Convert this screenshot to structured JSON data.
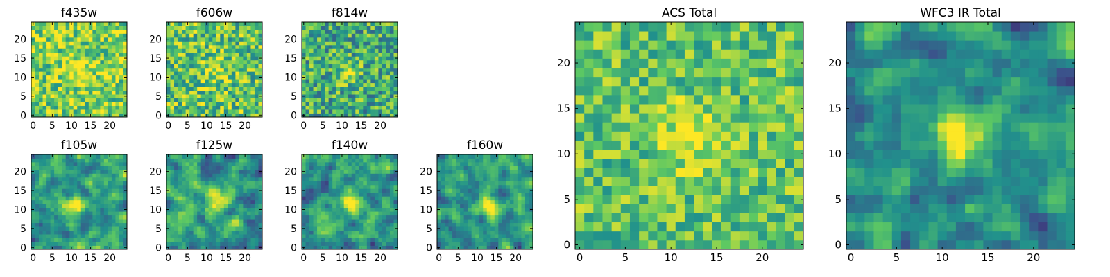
{
  "chart_data": [
    {
      "type": "heatmap",
      "title": "f435w",
      "size": 25,
      "center": [
        12,
        12
      ],
      "peak": 0.25,
      "sigma": 2.5,
      "smooth": 0,
      "noise": 0.55,
      "base": 0.78,
      "seed": 11,
      "xticks": [
        "0",
        "5",
        "10",
        "15",
        "20"
      ],
      "yticks": [
        "0",
        "5",
        "10",
        "15",
        "20"
      ],
      "xlim": [
        -0.5,
        24.5
      ],
      "ylim": [
        -0.5,
        24.5
      ]
    },
    {
      "type": "heatmap",
      "title": "f606w",
      "size": 25,
      "center": [
        12,
        12
      ],
      "peak": 0.2,
      "sigma": 2.5,
      "smooth": 0,
      "noise": 0.6,
      "base": 0.72,
      "seed": 23,
      "xticks": [
        "0",
        "5",
        "10",
        "15",
        "20"
      ],
      "yticks": [
        "0",
        "5",
        "10",
        "15",
        "20"
      ],
      "xlim": [
        -0.5,
        24.5
      ],
      "ylim": [
        -0.5,
        24.5
      ]
    },
    {
      "type": "heatmap",
      "title": "f814w",
      "size": 25,
      "center": [
        12,
        11
      ],
      "peak": 0.35,
      "sigma": 1.8,
      "smooth": 0,
      "noise": 0.6,
      "base": 0.62,
      "seed": 37,
      "xticks": [
        "0",
        "5",
        "10",
        "15",
        "20"
      ],
      "yticks": [
        "0",
        "5",
        "10",
        "15",
        "20"
      ],
      "xlim": [
        -0.5,
        24.5
      ],
      "ylim": [
        -0.5,
        24.5
      ]
    },
    {
      "type": "heatmap",
      "title": "f105w",
      "size": 25,
      "center": [
        11,
        11
      ],
      "peak": 0.45,
      "sigma": 2.0,
      "smooth": 1,
      "noise": 0.55,
      "base": 0.55,
      "seed": 41,
      "xticks": [
        "0",
        "5",
        "10",
        "15",
        "20"
      ],
      "yticks": [
        "0",
        "5",
        "10",
        "15",
        "20"
      ],
      "xlim": [
        -0.5,
        24.5
      ],
      "ylim": [
        -0.5,
        24.5
      ]
    },
    {
      "type": "heatmap",
      "title": "f125w",
      "size": 25,
      "center": [
        13,
        12
      ],
      "peak": 0.45,
      "sigma": 2.0,
      "smooth": 1,
      "noise": 0.55,
      "base": 0.55,
      "seed": 53,
      "xticks": [
        "0",
        "5",
        "10",
        "15",
        "20"
      ],
      "yticks": [
        "0",
        "5",
        "10",
        "15",
        "20"
      ],
      "xlim": [
        -0.5,
        24.5
      ],
      "ylim": [
        -0.5,
        24.5
      ]
    },
    {
      "type": "heatmap",
      "title": "f140w",
      "size": 25,
      "center": [
        12,
        12
      ],
      "peak": 0.45,
      "sigma": 2.0,
      "smooth": 1,
      "noise": 0.55,
      "base": 0.55,
      "seed": 67,
      "xticks": [
        "0",
        "5",
        "10",
        "15",
        "20"
      ],
      "yticks": [
        "0",
        "5",
        "10",
        "15",
        "20"
      ],
      "xlim": [
        -0.5,
        24.5
      ],
      "ylim": [
        -0.5,
        24.5
      ]
    },
    {
      "type": "heatmap",
      "title": "f160w",
      "size": 25,
      "center": [
        13,
        11
      ],
      "peak": 0.55,
      "sigma": 1.8,
      "smooth": 1,
      "noise": 0.5,
      "base": 0.55,
      "seed": 79,
      "xticks": [
        "0",
        "5",
        "10",
        "15",
        "20"
      ],
      "yticks": [
        "0",
        "5",
        "10",
        "15",
        "20"
      ],
      "xlim": [
        -0.5,
        24.5
      ],
      "ylim": [
        -0.5,
        24.5
      ]
    },
    {
      "type": "heatmap",
      "title": "ACS Total",
      "size": 25,
      "center": [
        12,
        12
      ],
      "peak": 0.3,
      "sigma": 2.2,
      "smooth": 0,
      "noise": 0.45,
      "base": 0.72,
      "seed": 97,
      "xticks": [
        "0",
        "5",
        "10",
        "15",
        "20"
      ],
      "yticks": [
        "0",
        "5",
        "10",
        "15",
        "20"
      ],
      "xlim": [
        -0.5,
        24.5
      ],
      "ylim": [
        -0.5,
        24.5
      ]
    },
    {
      "type": "heatmap",
      "title": "WFC3 IR Total",
      "size": 25,
      "center": [
        12,
        12
      ],
      "peak": 0.55,
      "sigma": 1.8,
      "smooth": 1,
      "noise": 0.5,
      "base": 0.5,
      "seed": 113,
      "xticks": [
        "0",
        "5",
        "10",
        "15",
        "20"
      ],
      "yticks": [
        "0",
        "5",
        "10",
        "15",
        "20"
      ],
      "xlim": [
        -0.5,
        24.5
      ],
      "ylim": [
        -0.5,
        24.5
      ]
    }
  ],
  "colormap": [
    "#440154",
    "#3b528b",
    "#21918c",
    "#5ec962",
    "#fde725"
  ]
}
